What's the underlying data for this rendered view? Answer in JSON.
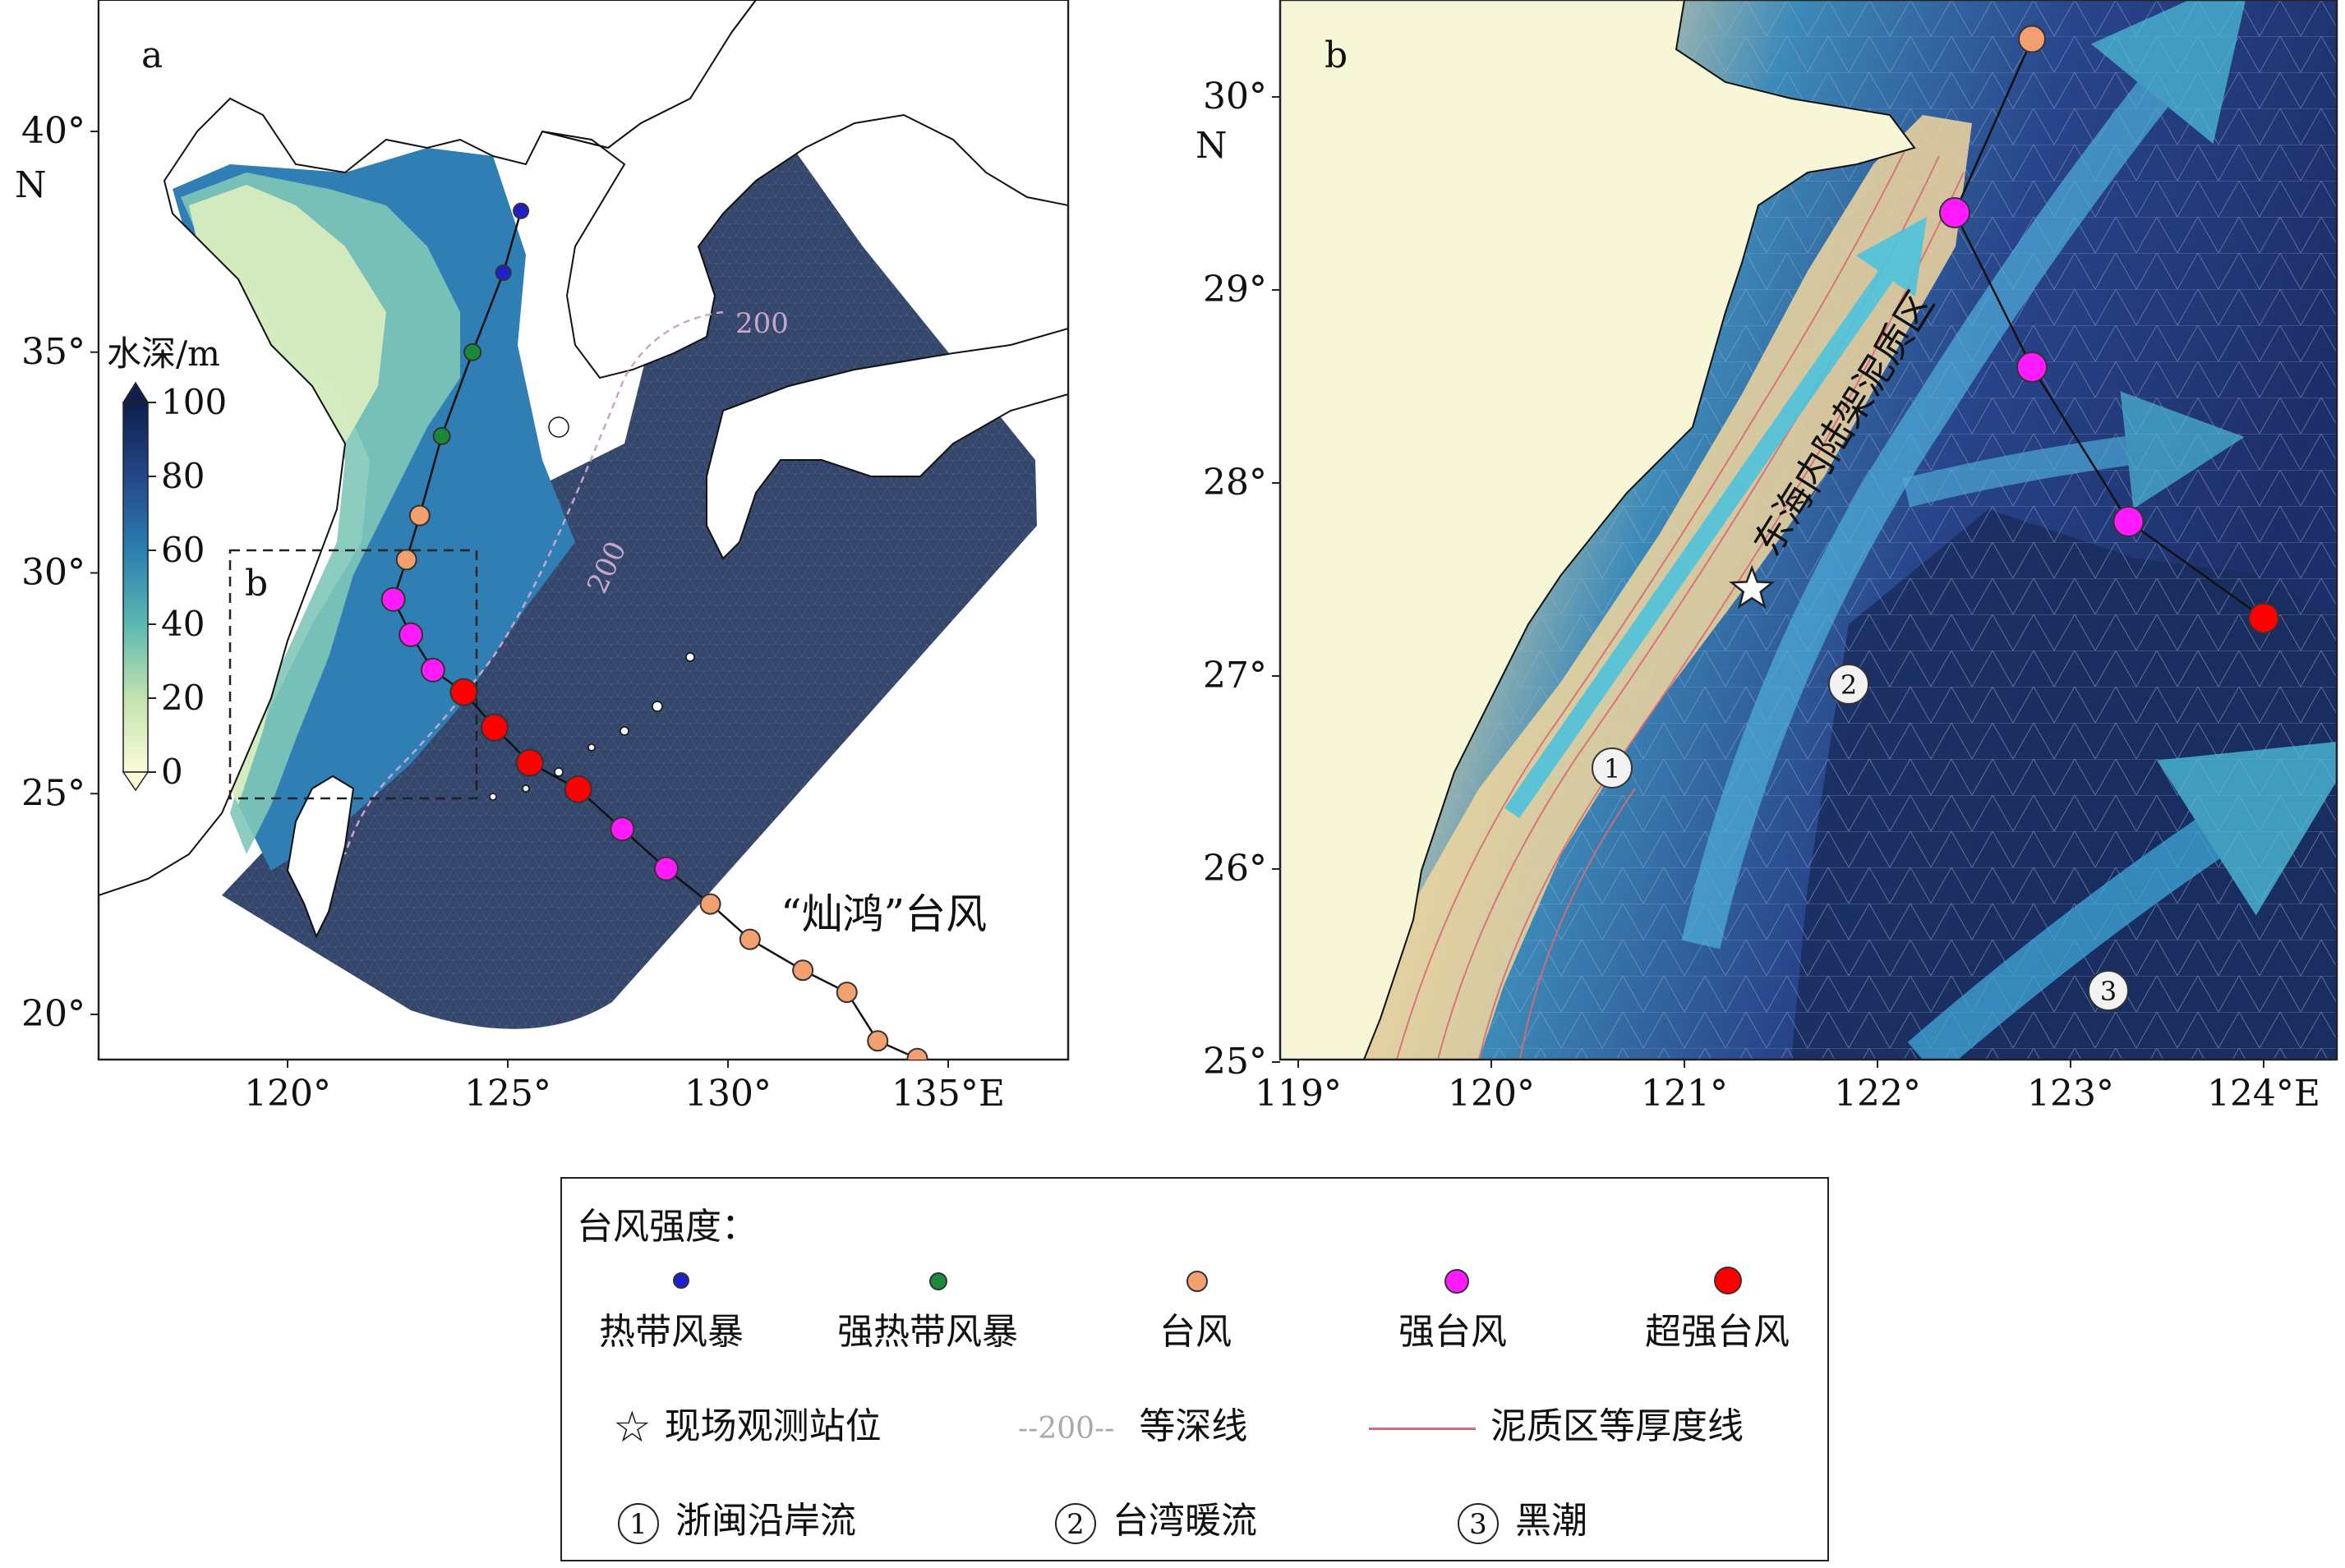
{
  "panel_a": {
    "label": "a",
    "colorbar_title": "水深/m",
    "colorbar_ticks": [
      "100",
      "80",
      "60",
      "40",
      "20",
      "0"
    ],
    "y_ticks": [
      "40°",
      "35°",
      "30°",
      "25°",
      "20°"
    ],
    "y_unit": "N",
    "x_ticks": [
      "120°",
      "125°",
      "130°",
      "135°E"
    ],
    "inset_label": "b",
    "contour_label_1": "200",
    "contour_label_2": "200",
    "typhoon_name": "“灿鸿”台风"
  },
  "panel_b": {
    "label": "b",
    "y_ticks": [
      "30°",
      "29°",
      "28°",
      "27°",
      "26°",
      "25°"
    ],
    "y_unit": "N",
    "x_ticks": [
      "119°",
      "120°",
      "121°",
      "122°",
      "123°",
      "124°E"
    ],
    "mud_zone_label": "东海内陆架泥质区",
    "current_markers": [
      "1",
      "2",
      "3"
    ]
  },
  "legend": {
    "title": "台风强度：",
    "categories": [
      {
        "label": "热带风暴",
        "color": "#1f1fcc"
      },
      {
        "label": "强热带风暴",
        "color": "#1a8a3a"
      },
      {
        "label": "台风",
        "color": "#f2a070"
      },
      {
        "label": "强台风",
        "color": "#ff1aff"
      },
      {
        "label": "超强台风",
        "color": "#ff0000"
      }
    ],
    "station": "现场观测站位",
    "isobath_sample": "200",
    "isobath": "等深线",
    "mud_isopach": "泥质区等厚度线",
    "currents": [
      {
        "num": "1",
        "label": "浙闽沿岸流"
      },
      {
        "num": "2",
        "label": "台湾暖流"
      },
      {
        "num": "3",
        "label": "黑潮"
      }
    ]
  },
  "track_a": [
    {
      "lon": 125.3,
      "lat": 38.2,
      "cat": 0
    },
    {
      "lon": 124.9,
      "lat": 36.8,
      "cat": 0
    },
    {
      "lon": 124.2,
      "lat": 35.0,
      "cat": 1
    },
    {
      "lon": 123.5,
      "lat": 33.1,
      "cat": 1
    },
    {
      "lon": 123.0,
      "lat": 31.3,
      "cat": 2
    },
    {
      "lon": 122.7,
      "lat": 30.3,
      "cat": 2
    },
    {
      "lon": 122.4,
      "lat": 29.4,
      "cat": 3
    },
    {
      "lon": 122.8,
      "lat": 28.6,
      "cat": 3
    },
    {
      "lon": 123.3,
      "lat": 27.8,
      "cat": 3
    },
    {
      "lon": 124.0,
      "lat": 27.3,
      "cat": 4
    },
    {
      "lon": 124.7,
      "lat": 26.5,
      "cat": 4
    },
    {
      "lon": 125.5,
      "lat": 25.7,
      "cat": 4
    },
    {
      "lon": 126.6,
      "lat": 25.1,
      "cat": 4
    },
    {
      "lon": 127.6,
      "lat": 24.2,
      "cat": 3
    },
    {
      "lon": 128.6,
      "lat": 23.3,
      "cat": 3
    },
    {
      "lon": 129.6,
      "lat": 22.5,
      "cat": 2
    },
    {
      "lon": 130.5,
      "lat": 21.7,
      "cat": 2
    },
    {
      "lon": 131.7,
      "lat": 21.0,
      "cat": 2
    },
    {
      "lon": 132.7,
      "lat": 20.5,
      "cat": 2
    },
    {
      "lon": 133.4,
      "lat": 19.4,
      "cat": 2
    },
    {
      "lon": 134.3,
      "lat": 19.0,
      "cat": 2
    }
  ],
  "track_b": [
    {
      "lon": 122.8,
      "lat": 30.3,
      "cat": 2
    },
    {
      "lon": 122.4,
      "lat": 29.4,
      "cat": 3
    },
    {
      "lon": 122.8,
      "lat": 28.6,
      "cat": 3
    },
    {
      "lon": 123.3,
      "lat": 27.8,
      "cat": 3
    },
    {
      "lon": 124.0,
      "lat": 27.3,
      "cat": 4
    }
  ],
  "station_b": {
    "lon": 121.35,
    "lat": 27.45
  }
}
